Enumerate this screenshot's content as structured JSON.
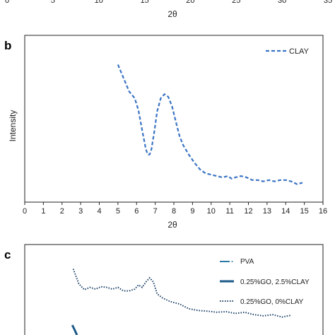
{
  "chart_data": [
    {
      "panel": "a",
      "type": "line",
      "xlabel": "2θ",
      "xticks": [
        "0",
        "5",
        "10",
        "15",
        "20",
        "25",
        "30",
        "35"
      ],
      "xlim": [
        0,
        35
      ]
    },
    {
      "panel": "b",
      "type": "line",
      "xlabel": "2θ",
      "ylabel": "Intensity",
      "xlim": [
        0,
        16
      ],
      "xticks": [
        "0",
        "1",
        "2",
        "3",
        "4",
        "5",
        "6",
        "7",
        "8",
        "9",
        "10",
        "11",
        "12",
        "13",
        "14",
        "15",
        "16"
      ],
      "grid": false,
      "legend_position": "top-right",
      "series": [
        {
          "name": "CLAY",
          "color": "#3b74c4",
          "style": "dashed",
          "x": [
            5.0,
            5.3,
            5.6,
            5.9,
            6.1,
            6.3,
            6.5,
            6.6,
            6.7,
            6.8,
            6.95,
            7.1,
            7.3,
            7.5,
            7.7,
            7.9,
            8.1,
            8.3,
            8.5,
            8.8,
            9.1,
            9.4,
            9.7,
            10.0,
            10.3,
            10.6,
            10.9,
            11.1,
            11.3,
            11.6,
            11.9,
            12.2,
            12.5,
            12.8,
            13.1,
            13.4,
            13.7,
            14.0,
            14.3,
            14.6,
            14.9
          ],
          "y": [
            0.94,
            0.84,
            0.74,
            0.69,
            0.6,
            0.45,
            0.31,
            0.27,
            0.27,
            0.31,
            0.44,
            0.59,
            0.69,
            0.72,
            0.7,
            0.63,
            0.52,
            0.41,
            0.34,
            0.27,
            0.21,
            0.16,
            0.13,
            0.12,
            0.11,
            0.1,
            0.11,
            0.09,
            0.1,
            0.11,
            0.1,
            0.08,
            0.08,
            0.07,
            0.08,
            0.07,
            0.08,
            0.08,
            0.07,
            0.05,
            0.06
          ]
        }
      ]
    },
    {
      "panel": "c",
      "type": "line",
      "grid": false,
      "legend_position": "top-right",
      "series": [
        {
          "name": "PVA",
          "color": "#2a7aa3",
          "style": "dash-dot"
        },
        {
          "name": "0.25%GO, 2.5%CLAY",
          "color": "#1c5a8a",
          "style": "solid"
        },
        {
          "name": "0.25%GO, 0%CLAY",
          "color": "#1a3f66",
          "style": "dotted",
          "x": [
            2.6,
            2.9,
            3.2,
            3.5,
            3.8,
            4.1,
            4.4,
            4.7,
            5.0,
            5.3,
            5.6,
            5.9,
            6.1,
            6.3,
            6.5,
            6.7,
            6.9,
            7.1,
            7.4,
            7.8,
            8.3,
            8.8,
            9.3,
            9.8,
            10.3,
            10.8,
            11.3,
            11.8,
            12.3,
            12.8,
            13.3,
            13.8,
            14.3
          ],
          "y": [
            0.97,
            0.72,
            0.62,
            0.66,
            0.63,
            0.67,
            0.66,
            0.63,
            0.66,
            0.6,
            0.6,
            0.63,
            0.7,
            0.66,
            0.75,
            0.82,
            0.75,
            0.55,
            0.48,
            0.42,
            0.38,
            0.3,
            0.27,
            0.26,
            0.24,
            0.25,
            0.22,
            0.24,
            0.2,
            0.18,
            0.2,
            0.16,
            0.19
          ]
        }
      ]
    }
  ]
}
